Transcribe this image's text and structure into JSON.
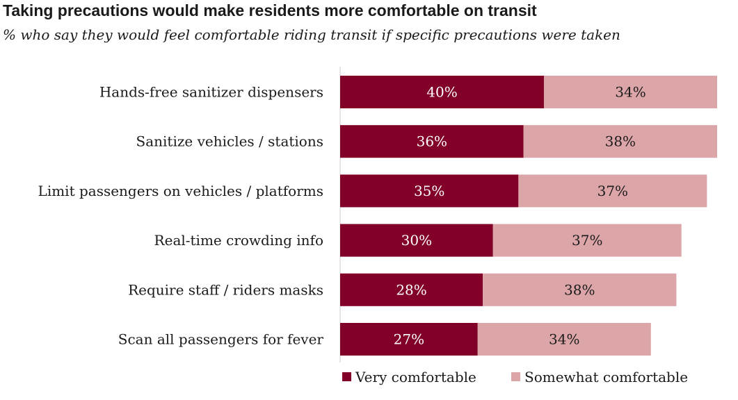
{
  "colors": {
    "very": "#820028",
    "somewhat": "#dca5a8",
    "axis": "#cccccc"
  },
  "chart_data": {
    "type": "bar",
    "orientation": "horizontal",
    "stacked": true,
    "title": "Taking precautions would make residents more comfortable on transit",
    "subtitle": "% who say they would feel comfortable riding transit if specific precautions were taken",
    "xlim": [
      0,
      74
    ],
    "value_suffix": "%",
    "categories": [
      "Hands-free sanitizer dispensers",
      "Sanitize vehicles /  stations",
      "Limit passengers on vehicles / platforms",
      "Real-time  crowding info",
      "Require staff / riders masks",
      "Scan all passengers for fever"
    ],
    "series": [
      {
        "name": "Very comfortable",
        "color": "#820028",
        "values": [
          40,
          36,
          35,
          30,
          28,
          27
        ]
      },
      {
        "name": "Somewhat comfortable",
        "color": "#dca5a8",
        "values": [
          34,
          38,
          37,
          37,
          38,
          34
        ]
      }
    ],
    "legend_position": "bottom"
  }
}
